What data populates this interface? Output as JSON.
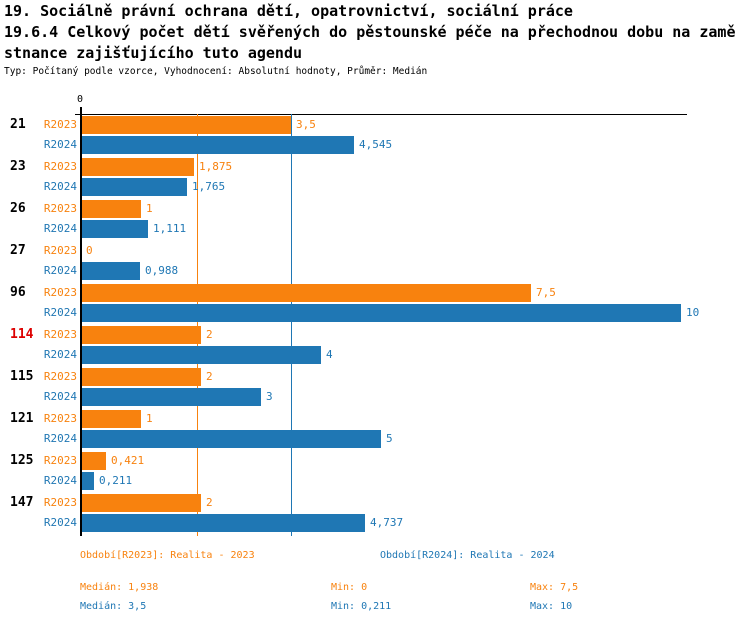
{
  "header": {
    "line1": "19. Sociálně právní ochrana dětí, opatrovnictví, sociální práce",
    "line2": "19.6.4 Celkový počet dětí svěřených do pěstounské péče na přechodnou dobu na zamě",
    "line3": "stnance zajišťujícího tuto agendu",
    "meta": "Typ: Počítaný podle vzorce, Vyhodnocení: Absolutní hodnoty, Průměr: Medián"
  },
  "chart_data": {
    "type": "bar",
    "orientation": "horizontal",
    "axis_zero_label": "0",
    "xlim": [
      0,
      10.2
    ],
    "grid": "median-lines-only",
    "legend_position": "bottom",
    "categories": [
      "21",
      "23",
      "26",
      "27",
      "96",
      "114",
      "115",
      "121",
      "125",
      "147"
    ],
    "highlighted_category": "114",
    "highlight_color": "#dd0000",
    "category_color": "#000000",
    "series": [
      {
        "name": "R2023",
        "color": "#f8820e",
        "median": 1.938,
        "values": [
          3.5,
          1.875,
          1,
          0,
          7.5,
          2,
          2,
          1,
          0.421,
          2
        ],
        "value_labels": [
          "3,5",
          "1,875",
          "1",
          "0",
          "7,5",
          "2",
          "2",
          "1",
          "0,421",
          "2"
        ]
      },
      {
        "name": "R2024",
        "color": "#1f77b4",
        "median": 3.5,
        "values": [
          4.545,
          1.765,
          1.111,
          0.988,
          10,
          4,
          3,
          5,
          0.211,
          4.737
        ],
        "value_labels": [
          "4,545",
          "1,765",
          "1,111",
          "0,988",
          "10",
          "4",
          "3",
          "5",
          "0,211",
          "4,737"
        ]
      }
    ]
  },
  "legend": {
    "r2023": "Období[R2023]: Realita - 2023",
    "r2024": "Období[R2024]: Realita - 2024"
  },
  "stats": {
    "r2023": {
      "median": "Medián: 1,938",
      "min": "Min: 0",
      "max": "Max: 7,5"
    },
    "r2024": {
      "median": "Medián: 3,5",
      "min": "Min: 0,211",
      "max": "Max: 10"
    }
  }
}
